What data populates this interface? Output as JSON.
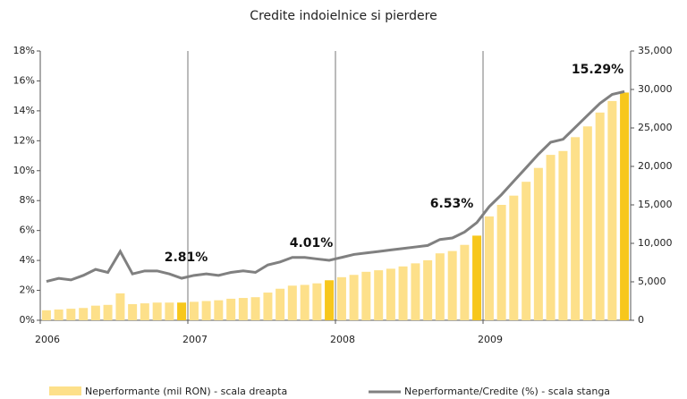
{
  "chart_data": {
    "type": "bar_line",
    "title": "Credite indoielnice si pierdere",
    "xlim": [
      2006,
      2010
    ],
    "xticks": [
      2006,
      2007,
      2008,
      2009
    ],
    "x": [
      2006.042,
      2006.125,
      2006.208,
      2006.292,
      2006.375,
      2006.458,
      2006.542,
      2006.625,
      2006.708,
      2006.792,
      2006.875,
      2006.958,
      2007.042,
      2007.125,
      2007.208,
      2007.292,
      2007.375,
      2007.458,
      2007.542,
      2007.625,
      2007.708,
      2007.792,
      2007.875,
      2007.958,
      2008.042,
      2008.125,
      2008.208,
      2008.292,
      2008.375,
      2008.458,
      2008.542,
      2008.625,
      2008.708,
      2008.792,
      2008.875,
      2008.958,
      2009.042,
      2009.125,
      2009.208,
      2009.292,
      2009.375,
      2009.458,
      2009.542,
      2009.625,
      2009.708,
      2009.792,
      2009.875,
      2009.958
    ],
    "ylim": [
      0,
      18
    ],
    "yticks": [
      {
        "value": 0,
        "label": "0%"
      },
      {
        "value": 2,
        "label": "2%"
      },
      {
        "value": 4,
        "label": "4%"
      },
      {
        "value": 6,
        "label": "6%"
      },
      {
        "value": 8,
        "label": "8%"
      },
      {
        "value": 10,
        "label": "10%"
      },
      {
        "value": 12,
        "label": "12%"
      },
      {
        "value": 14,
        "label": "14%"
      },
      {
        "value": 16,
        "label": "16%"
      },
      {
        "value": 18,
        "label": "18%"
      }
    ],
    "y2lim": [
      0,
      35000
    ],
    "y2ticks": [
      0,
      {
        "value": 5000,
        "label": "5,000"
      },
      {
        "value": 10000,
        "label": "10,000"
      },
      {
        "value": 15000,
        "label": "15,000"
      },
      {
        "value": 20000,
        "label": "20,000"
      },
      {
        "value": 25000,
        "label": "25,000"
      },
      {
        "value": 30000,
        "label": "30,000"
      },
      {
        "value": 35000,
        "label": "35,000"
      }
    ],
    "series": [
      {
        "name": "Neperformante (mil RON) - scala dreapta",
        "type": "bar",
        "axis": "y2",
        "color": "#fde08a",
        "highlight_color": "#f7c71c",
        "values": [
          1300,
          1400,
          1500,
          1600,
          1900,
          2000,
          3500,
          2100,
          2200,
          2300,
          2300,
          2300,
          2400,
          2500,
          2600,
          2800,
          2900,
          3000,
          3600,
          4100,
          4500,
          4600,
          4800,
          5200,
          5600,
          5900,
          6300,
          6500,
          6700,
          7000,
          7400,
          7800,
          8700,
          9000,
          9800,
          11000,
          13500,
          15000,
          16200,
          18000,
          19800,
          21500,
          22000,
          23800,
          25200,
          27000,
          28500,
          29600
        ],
        "highlight": [
          11,
          23,
          35,
          47
        ]
      },
      {
        "name": "Neperformante/Credite (%) - scala stanga",
        "type": "line",
        "axis": "y",
        "color": "#808080",
        "values": [
          2.6,
          2.8,
          2.7,
          3.0,
          3.4,
          3.2,
          4.6,
          3.1,
          3.3,
          3.3,
          3.1,
          2.81,
          3.0,
          3.1,
          3.0,
          3.2,
          3.3,
          3.2,
          3.7,
          3.9,
          4.2,
          4.2,
          4.1,
          4.01,
          4.2,
          4.4,
          4.5,
          4.6,
          4.7,
          4.8,
          4.9,
          5.0,
          5.4,
          5.5,
          5.9,
          6.53,
          7.6,
          8.4,
          9.3,
          10.2,
          11.1,
          11.9,
          12.1,
          12.9,
          13.7,
          14.5,
          15.1,
          15.29
        ]
      }
    ],
    "annotations": [
      "2.81%",
      "4.01%",
      "6.53%",
      "15.29%"
    ]
  }
}
